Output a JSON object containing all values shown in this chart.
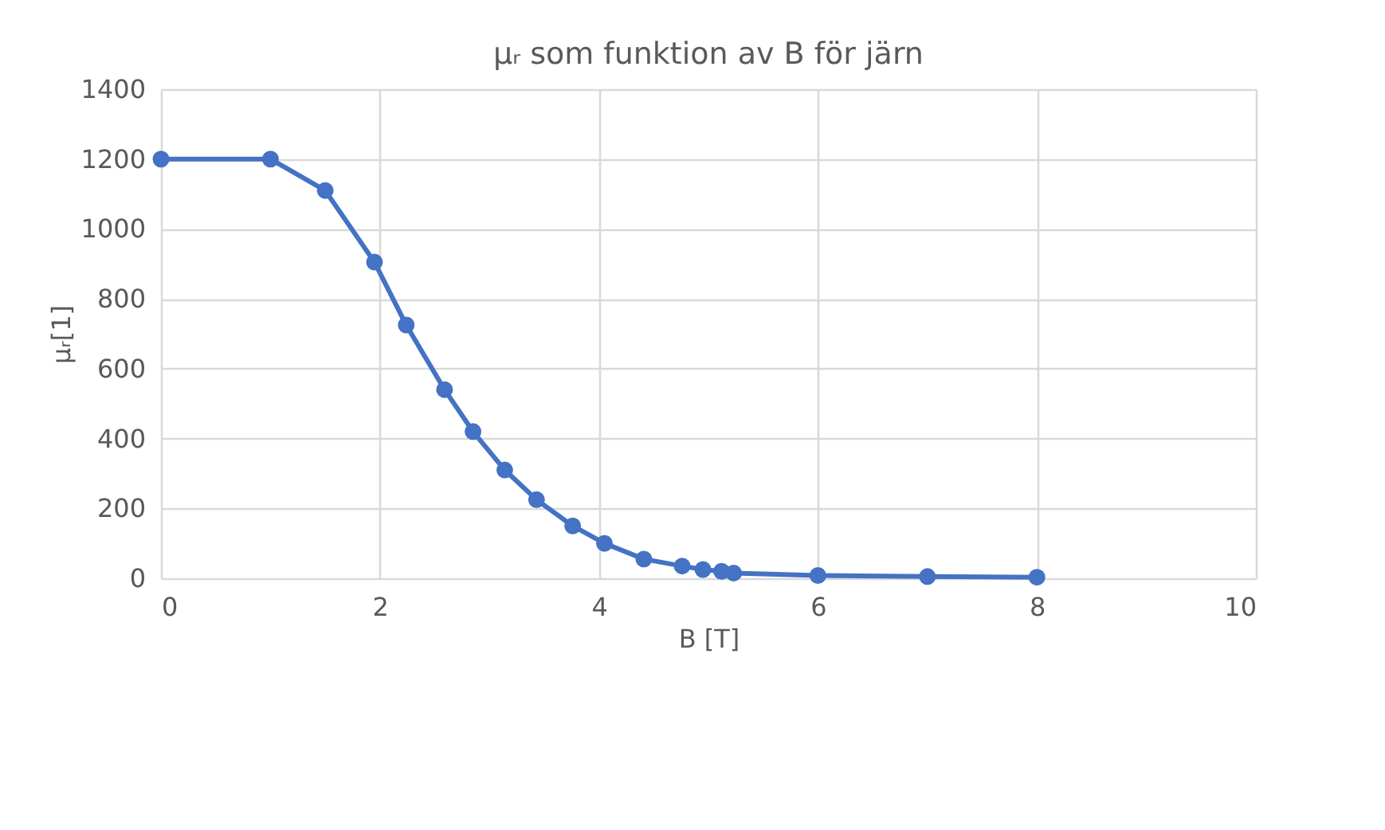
{
  "chart_data": {
    "type": "line",
    "title": "μᵣ som funktion av B för järn",
    "xlabel": "B [T]",
    "ylabel": "μᵣ[1]",
    "series": [
      {
        "color": "#4472c4",
        "x": [
          0,
          1,
          1.5,
          1.95,
          2.24,
          2.59,
          2.85,
          3.14,
          3.43,
          3.76,
          4.05,
          4.41,
          4.76,
          4.95,
          5.12,
          5.23,
          6,
          7,
          8
        ],
        "values": [
          1200,
          1200,
          1110,
          905,
          725,
          540,
          420,
          310,
          225,
          150,
          100,
          55,
          35,
          25,
          20,
          15,
          8,
          5,
          3
        ]
      }
    ],
    "xlim": [
      0,
      10
    ],
    "xticks": [
      0,
      2,
      4,
      6,
      8,
      10
    ],
    "ylim": [
      0,
      1400
    ],
    "yticks": [
      0,
      200,
      400,
      600,
      800,
      1000,
      1200,
      1400
    ],
    "grid": true,
    "marker": "circle",
    "line_style": "solid"
  }
}
